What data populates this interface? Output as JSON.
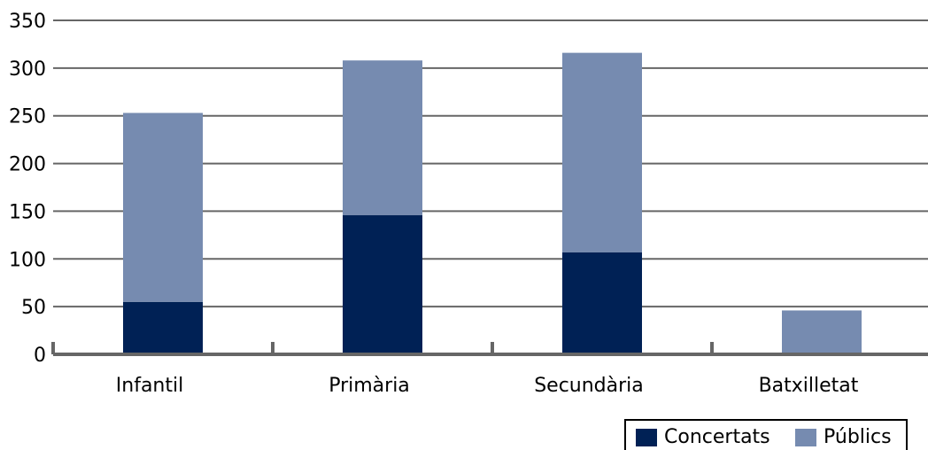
{
  "chart_data": {
    "type": "bar",
    "stacked": true,
    "categories": [
      "Infantil",
      "Primària",
      "Secundària",
      "Batxilletat"
    ],
    "series": [
      {
        "name": "Concertats",
        "values": [
          55,
          146,
          107,
          0
        ],
        "color": "#002155"
      },
      {
        "name": "Públics",
        "values": [
          198,
          162,
          209,
          46
        ],
        "color": "#768bb0"
      }
    ],
    "title": "",
    "xlabel": "",
    "ylabel": "",
    "ylim": [
      0,
      350
    ],
    "yticks": [
      0,
      50,
      100,
      150,
      200,
      250,
      300,
      350
    ],
    "grid": true,
    "legend_position": "bottom-right",
    "colors": {
      "grid": "#666666",
      "axis": "#666666",
      "legend_border": "#000000"
    }
  }
}
